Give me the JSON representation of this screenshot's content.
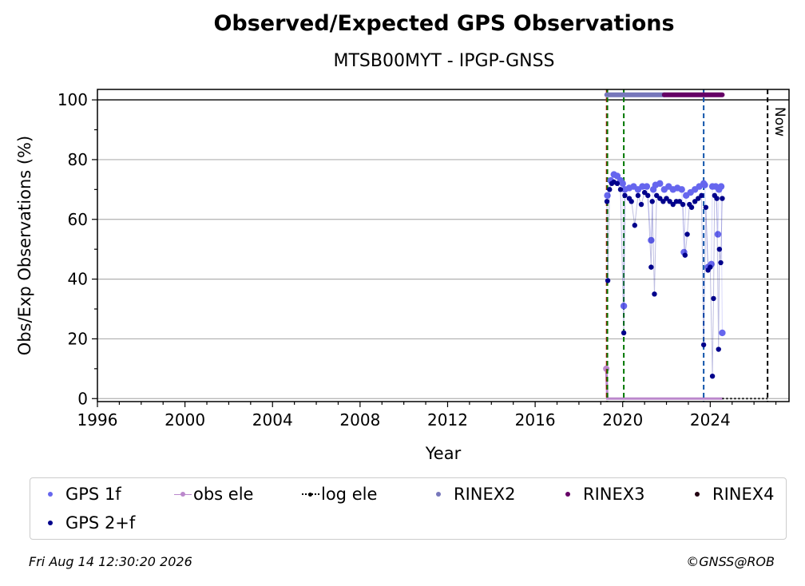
{
  "chart_data": {
    "type": "scatter",
    "title": "Observed/Expected GPS Observations",
    "subtitle": "MTSB00MYT - IPGP-GNSS",
    "xlabel": "Year",
    "ylabel": "Obs/Exp Observations (%)",
    "xlim": [
      1996,
      2027.6
    ],
    "ylim": [
      -1,
      103.5
    ],
    "x_ticks": [
      1996,
      2000,
      2004,
      2008,
      2012,
      2016,
      2020,
      2024
    ],
    "x_tick_labels": [
      "1996",
      "2000",
      "2004",
      "2008",
      "2012",
      "2016",
      "2020",
      "2024"
    ],
    "y_ticks": [
      0,
      20,
      40,
      60,
      80,
      100
    ],
    "y_tick_labels": [
      "0",
      "20",
      "40",
      "60",
      "80",
      "100"
    ],
    "grid": "horizontal",
    "legend_placement": "bottom",
    "now_label": "Now",
    "now_year": 2026.62,
    "reference_line_y": 100,
    "event_lines": [
      {
        "x": 2019.27,
        "color": "#cc0000",
        "style": "dashed"
      },
      {
        "x": 2019.3,
        "color": "#007700",
        "style": "dashed"
      },
      {
        "x": 2020.05,
        "color": "#007700",
        "style": "dashed"
      },
      {
        "x": 2023.7,
        "color": "#1155aa",
        "style": "dashed"
      },
      {
        "x": 2026.62,
        "color": "#000000",
        "style": "dashed"
      }
    ],
    "series": [
      {
        "name": "GPS 1f",
        "color": "#6666ee",
        "marker": "dot",
        "x": [
          2019.3,
          2019.45,
          2019.6,
          2019.75,
          2019.9,
          2020.0,
          2020.05,
          2020.1,
          2020.3,
          2020.5,
          2020.7,
          2020.9,
          2021.1,
          2021.3,
          2021.4,
          2021.5,
          2021.7,
          2021.9,
          2022.1,
          2022.3,
          2022.5,
          2022.7,
          2022.8,
          2022.9,
          2023.1,
          2023.3,
          2023.5,
          2023.7,
          2023.75,
          2023.9,
          2024.05,
          2024.1,
          2024.25,
          2024.35,
          2024.4,
          2024.5,
          2024.55
        ],
        "y": [
          68,
          73,
          75,
          74.5,
          73,
          72,
          31,
          70,
          70.5,
          71,
          70,
          71,
          71,
          53,
          70,
          71.5,
          72,
          70,
          71,
          70,
          70.5,
          70,
          49,
          68,
          69,
          70,
          71,
          72,
          71.5,
          44,
          45,
          71,
          71,
          55,
          70,
          71,
          22
        ]
      },
      {
        "name": "GPS 2+f",
        "color": "#00008b",
        "marker": "dot",
        "x": [
          2019.28,
          2019.32,
          2019.4,
          2019.5,
          2019.6,
          2019.75,
          2019.9,
          2020.05,
          2020.1,
          2020.3,
          2020.4,
          2020.55,
          2020.7,
          2020.85,
          2021.0,
          2021.15,
          2021.3,
          2021.35,
          2021.45,
          2021.55,
          2021.7,
          2021.85,
          2022.0,
          2022.15,
          2022.3,
          2022.45,
          2022.6,
          2022.75,
          2022.85,
          2022.95,
          2023.05,
          2023.15,
          2023.3,
          2023.45,
          2023.6,
          2023.7,
          2023.8,
          2023.9,
          2024.0,
          2024.1,
          2024.15,
          2024.2,
          2024.3,
          2024.38,
          2024.42,
          2024.48,
          2024.55
        ],
        "y": [
          66,
          39.5,
          70,
          72,
          72.5,
          72,
          70,
          22,
          68,
          67,
          66,
          58,
          68,
          65,
          69,
          68,
          44,
          66,
          35,
          68,
          67,
          66,
          67,
          66,
          65,
          66,
          66,
          65,
          48,
          55,
          65,
          64,
          66,
          67,
          68,
          18,
          64,
          43,
          44,
          7.5,
          33.5,
          68,
          67,
          16.5,
          50,
          45.5,
          67
        ]
      },
      {
        "name": "obs ele",
        "color": "#bb88cc",
        "marker": "line",
        "x": [
          2019.25,
          2019.3,
          2024.55
        ],
        "y": [
          10,
          0,
          0
        ]
      },
      {
        "name": "log ele",
        "color": "#000000",
        "marker": "dotted",
        "x": [
          2024.55,
          2026.62
        ],
        "y": [
          0,
          0
        ]
      },
      {
        "name": "RINEX2",
        "color": "#7777bb",
        "marker": "dot",
        "x_start": 2019.27,
        "x_end": 2021.9,
        "y": 101.7
      },
      {
        "name": "RINEX3",
        "color": "#660066",
        "marker": "dot",
        "x_start": 2021.9,
        "x_end": 2024.55,
        "y": 101.7
      },
      {
        "name": "RINEX4",
        "color": "#220011",
        "marker": "dot"
      }
    ]
  },
  "footer": {
    "timestamp": "Fri Aug 14 12:30:20 2026",
    "credit": "©GNSS@ROB"
  }
}
